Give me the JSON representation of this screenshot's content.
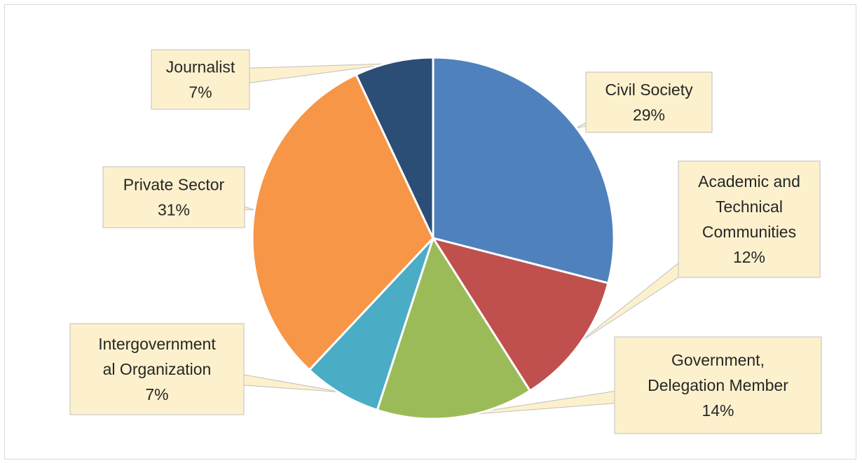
{
  "chart_data": {
    "type": "pie",
    "title": "",
    "slices": [
      {
        "name": "Civil Society",
        "value": 29,
        "label_lines": [
          "Civil Society",
          "29%"
        ],
        "color": "#4F81BD"
      },
      {
        "name": "Academic and Technical Communities",
        "value": 12,
        "label_lines": [
          "Academic and",
          "Technical",
          "Communities",
          "12%"
        ],
        "color": "#C0504D"
      },
      {
        "name": "Government, Delegation Member",
        "value": 14,
        "label_lines": [
          "Government,",
          "Delegation Member",
          "14%"
        ],
        "color": "#9BBB59"
      },
      {
        "name": "Intergovernmental Organization",
        "value": 7,
        "label_lines": [
          "Intergovernment",
          "al Organization",
          "7%"
        ],
        "color": "#4BACC6"
      },
      {
        "name": "Private Sector",
        "value": 31,
        "label_lines": [
          "Private Sector",
          "31%"
        ],
        "color": "#F79646"
      },
      {
        "name": "Journalist",
        "value": 7,
        "label_lines": [
          "Journalist",
          "7%"
        ],
        "color": "#2C4D75"
      }
    ],
    "legend": "none",
    "label_style": "callout"
  },
  "colors": {
    "callout_fill": "#FDF1CD",
    "callout_border": "#BFBFBF",
    "slice_border": "#ffffff"
  }
}
